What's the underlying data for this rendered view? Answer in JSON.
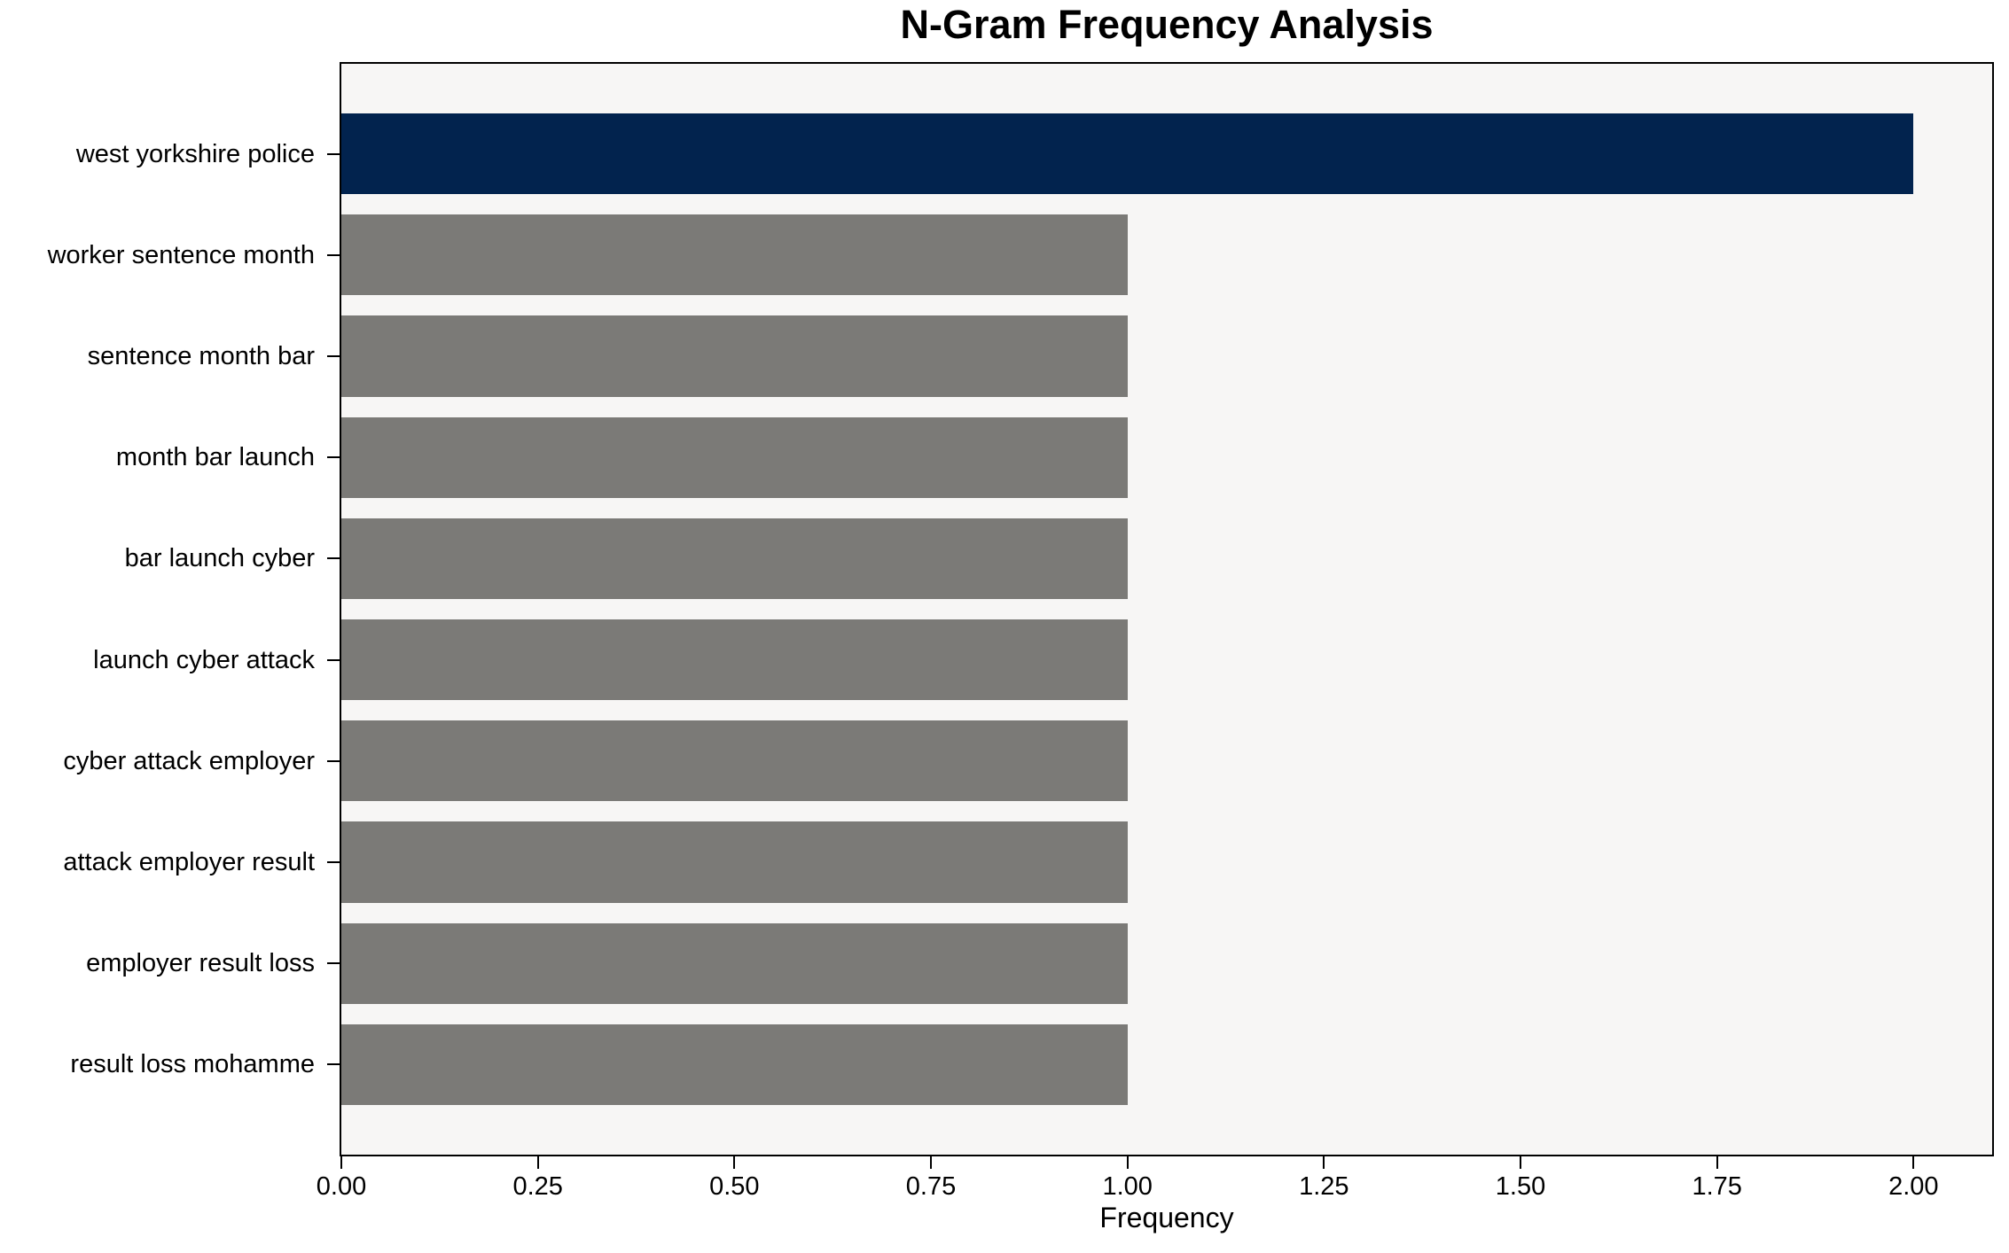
{
  "chart_data": {
    "type": "bar",
    "orientation": "horizontal",
    "title": "N-Gram Frequency Analysis",
    "xlabel": "Frequency",
    "ylabel": "",
    "categories": [
      "west yorkshire police",
      "worker sentence month",
      "sentence month bar",
      "month bar launch",
      "bar launch cyber",
      "launch cyber attack",
      "cyber attack employer",
      "attack employer result",
      "employer result loss",
      "result loss mohamme"
    ],
    "values": [
      2,
      1,
      1,
      1,
      1,
      1,
      1,
      1,
      1,
      1
    ],
    "xlim": [
      0,
      2.1
    ],
    "x_tick_values": [
      0,
      0.25,
      0.5,
      0.75,
      1.0,
      1.25,
      1.5,
      1.75,
      2.0
    ],
    "x_tick_labels": [
      "0.00",
      "0.25",
      "0.50",
      "0.75",
      "1.00",
      "1.25",
      "1.50",
      "1.75",
      "2.00"
    ],
    "bar_colors": [
      "#02234e",
      "#7b7a77",
      "#7b7a77",
      "#7b7a77",
      "#7b7a77",
      "#7b7a77",
      "#7b7a77",
      "#7b7a77",
      "#7b7a77",
      "#7b7a77"
    ],
    "colors": {
      "highlight": "#02234e",
      "bar_default": "#7b7a77",
      "plot_background": "#f7f6f5",
      "figure_background": "#ffffff",
      "axis": "#000000",
      "text": "#000000"
    },
    "grid": false,
    "legend": null
  }
}
